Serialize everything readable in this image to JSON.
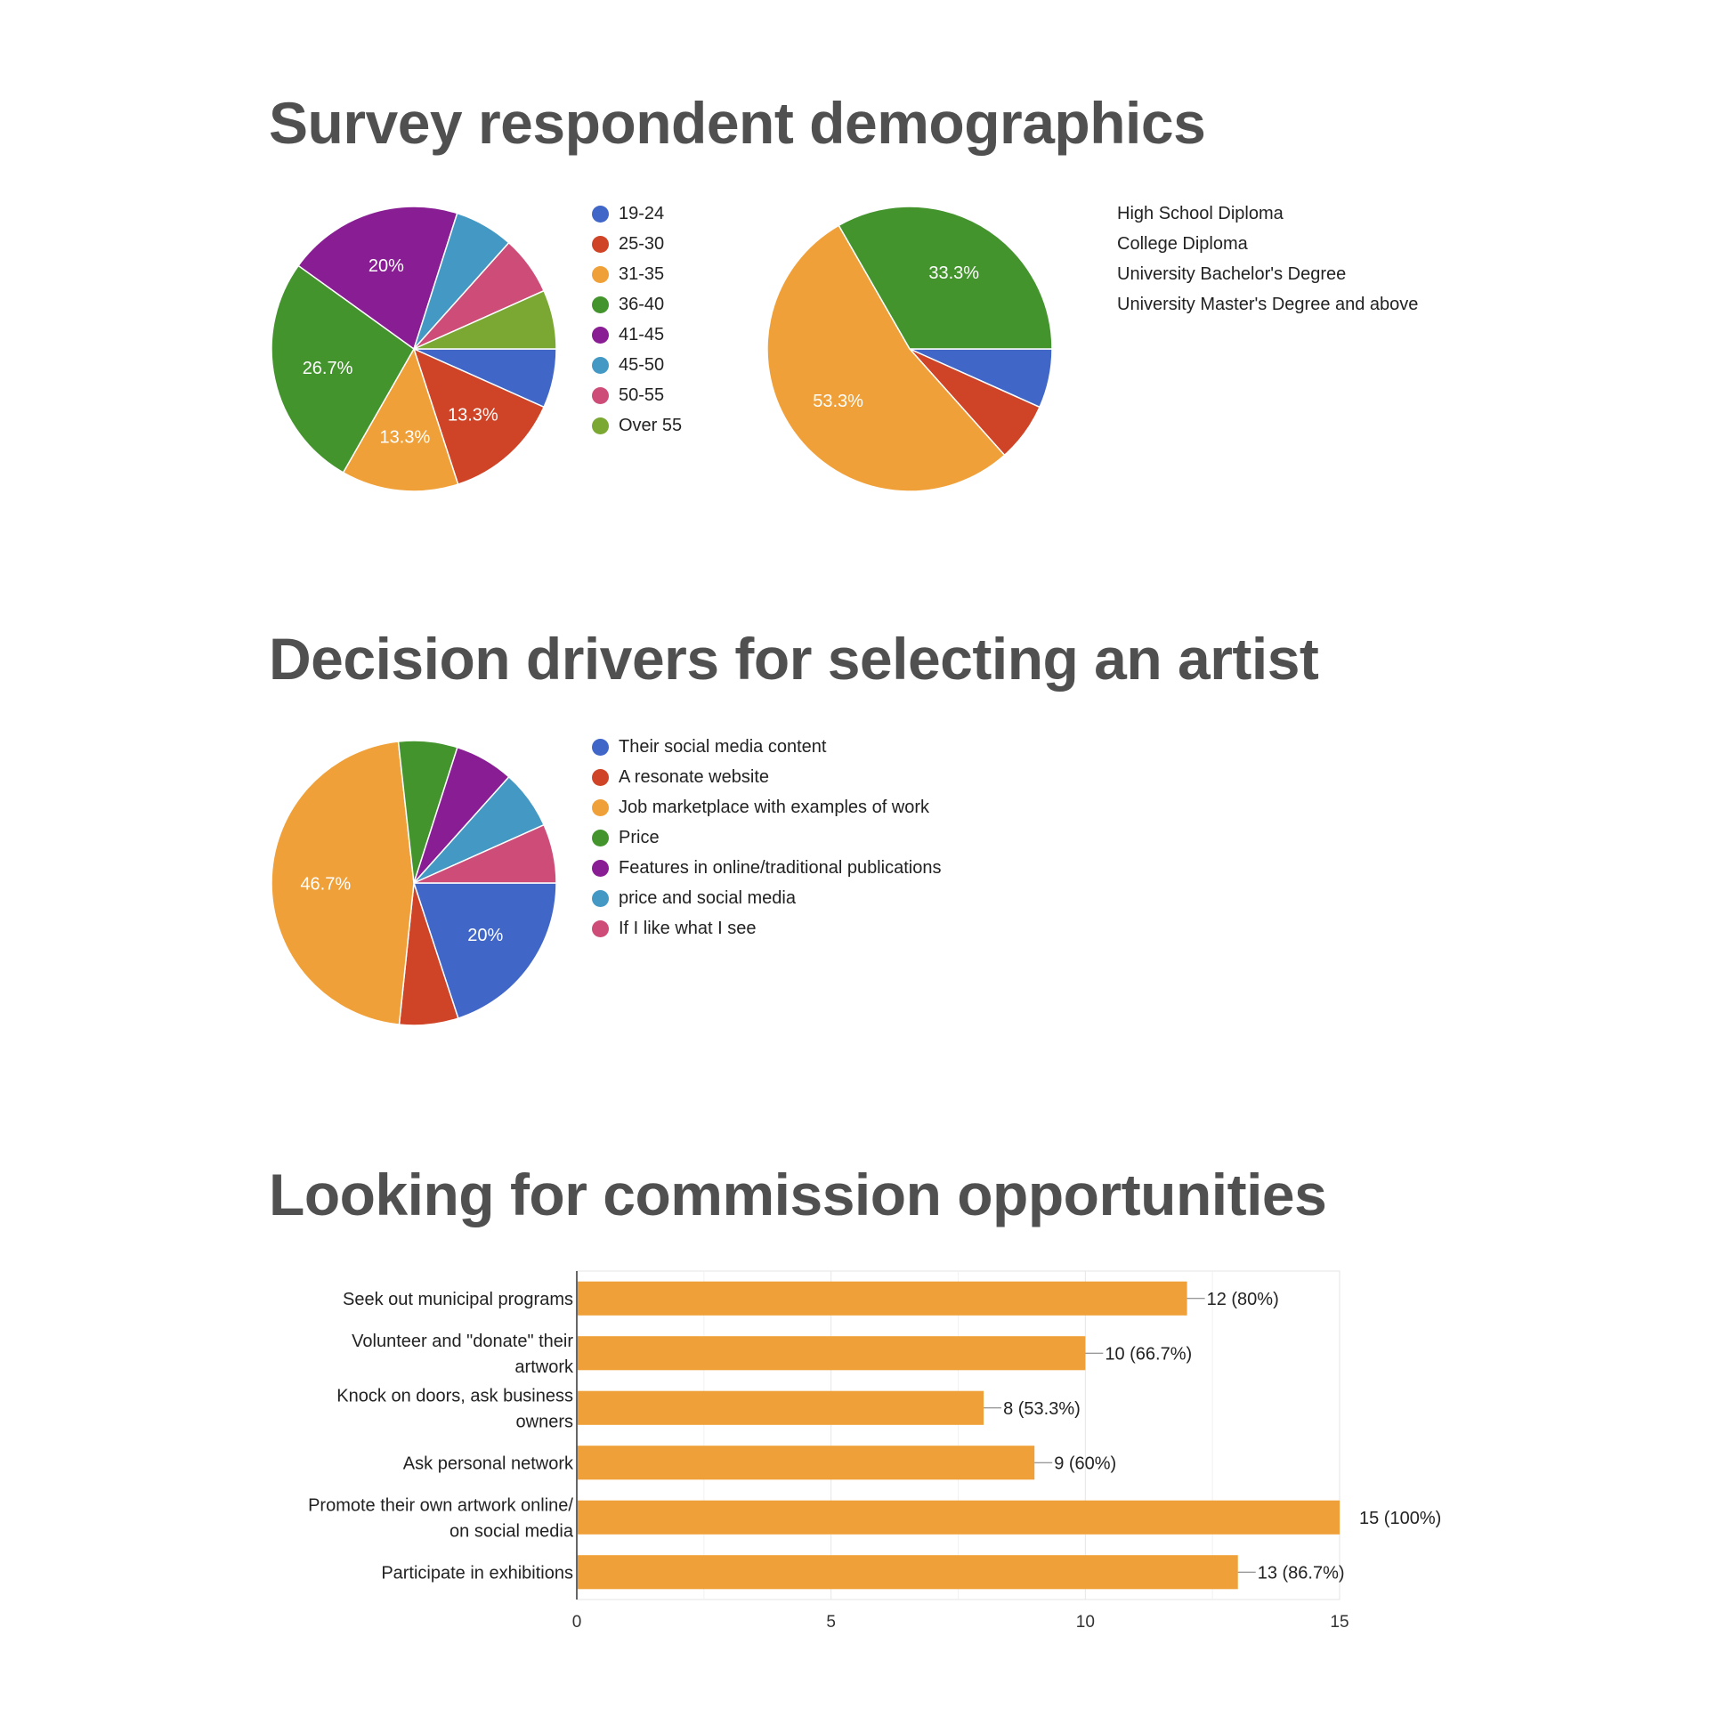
{
  "sections": {
    "demographics": {
      "title": "Survey respondent demographics"
    },
    "drivers": {
      "title": "Decision drivers for selecting an artist"
    },
    "commission": {
      "title": "Looking for commission opportunities"
    }
  },
  "chart_data": [
    {
      "id": "age",
      "type": "pie",
      "title": "",
      "categories": [
        "19-24",
        "25-30",
        "31-35",
        "36-40",
        "41-45",
        "45-50",
        "50-55",
        "Over 55"
      ],
      "values": [
        6.7,
        13.3,
        13.3,
        26.7,
        20,
        6.7,
        6.7,
        6.7
      ],
      "slice_labels": [
        "",
        "13.3%",
        "13.3%",
        "26.7%",
        "20%",
        "",
        "",
        ""
      ],
      "colors": [
        "#4066c8",
        "#cf4427",
        "#f0a038",
        "#44942e",
        "#891d94",
        "#4498c4",
        "#cd4d78",
        "#7aa833"
      ],
      "legend": "right"
    },
    {
      "id": "education",
      "type": "pie",
      "title": "",
      "categories": [
        "High School Diploma",
        "College Diploma",
        "University Bachelor's Degree",
        "University Master's Degree and above"
      ],
      "values": [
        6.7,
        6.7,
        53.3,
        33.3
      ],
      "slice_labels": [
        "",
        "",
        "53.3%",
        "33.3%"
      ],
      "colors": [
        "#4066c8",
        "#cf4427",
        "#f0a038",
        "#44942e"
      ],
      "legend": "right"
    },
    {
      "id": "drivers",
      "type": "pie",
      "title": "",
      "categories": [
        "Their social media content",
        "A resonate website",
        "Job marketplace with examples of work",
        "Price",
        "Features in online/traditional publications",
        "price and social media",
        "If I like what I see"
      ],
      "values": [
        20,
        6.7,
        46.7,
        6.7,
        6.7,
        6.7,
        6.7
      ],
      "slice_labels": [
        "20%",
        "",
        "46.7%",
        "",
        "",
        "",
        ""
      ],
      "colors": [
        "#4066c8",
        "#cf4427",
        "#f0a038",
        "#44942e",
        "#891d94",
        "#4498c4",
        "#cd4d78"
      ],
      "legend": "right"
    },
    {
      "id": "commission",
      "type": "bar",
      "orientation": "horizontal",
      "title": "",
      "categories": [
        "Seek out municipal programs",
        "Volunteer and \"donate\" their artwork",
        "Knock on doors, ask business owners",
        "Ask personal network",
        "Promote their own artwork online/ on social media",
        "Participate in exhibitions"
      ],
      "category_lines": [
        [
          "Seek out municipal programs"
        ],
        [
          "Volunteer and \"donate\" their",
          "artwork"
        ],
        [
          "Knock on doors, ask business",
          "owners"
        ],
        [
          "Ask personal network"
        ],
        [
          "Promote their own artwork online/",
          "on social media"
        ],
        [
          "Participate in exhibitions"
        ]
      ],
      "values": [
        12,
        10,
        8,
        9,
        15,
        13
      ],
      "data_labels": [
        "12 (80%)",
        "10 (66.7%)",
        "8 (53.3%)",
        "9 (60%)",
        "15 (100%)",
        "13 (86.7%)"
      ],
      "xlim": [
        0,
        15
      ],
      "xticks": [
        0,
        5,
        10,
        15
      ],
      "color": "#f0a038",
      "grid": true
    }
  ]
}
